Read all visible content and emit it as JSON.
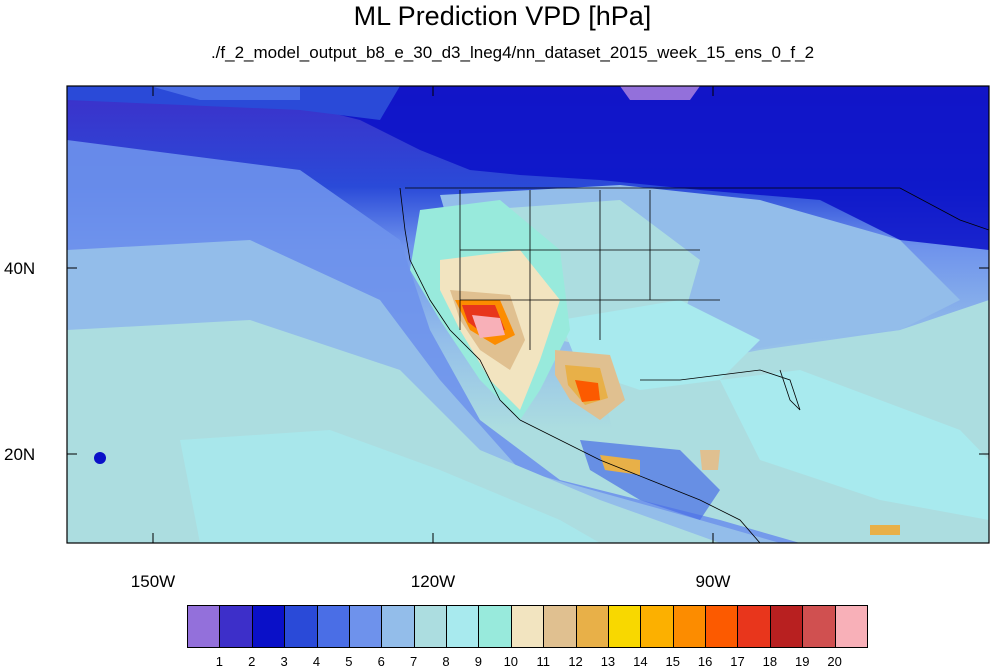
{
  "title": "ML Prediction VPD [hPa]",
  "subtitle": "./f_2_model_output_b8_e_30_d3_lneg4/nn_dataset_2015_week_15_ens_0_f_2",
  "axes": {
    "lat_labels": [
      "40N",
      "20N"
    ],
    "lon_labels": [
      "150W",
      "120W",
      "90W"
    ],
    "lat_range": [
      10,
      60
    ],
    "lon_range": [
      -160,
      -63
    ]
  },
  "colorbar": {
    "labels": [
      "1",
      "2",
      "3",
      "4",
      "5",
      "6",
      "7",
      "8",
      "9",
      "10",
      "11",
      "12",
      "13",
      "14",
      "15",
      "16",
      "17",
      "18",
      "19",
      "20"
    ],
    "colors": [
      "#9370db",
      "#3d2fc9",
      "#0a10c8",
      "#2a4ad8",
      "#4a6ee6",
      "#6e92ec",
      "#93bdea",
      "#acdde0",
      "#a8eaee",
      "#98eadc",
      "#f2e4c0",
      "#e0c090",
      "#e8b048",
      "#f8d800",
      "#fcb000",
      "#fc8c00",
      "#fc5a00",
      "#e8361c",
      "#b82020",
      "#d05050",
      "#f8b0b8"
    ]
  }
}
